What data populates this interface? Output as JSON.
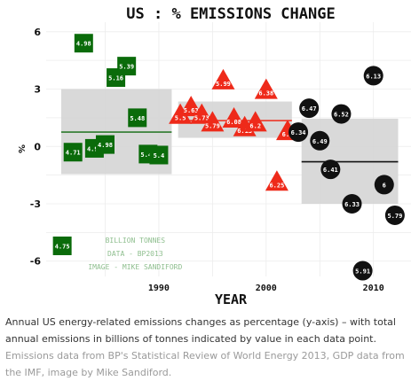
{
  "chart_data": {
    "type": "scatter",
    "title": "US : % EMISSIONS CHANGE",
    "xlabel": "YEAR",
    "ylabel": "%",
    "xlim": [
      1979.5,
      2013.5
    ],
    "ylim": [
      -6.8,
      6.5
    ],
    "x_ticks": [
      {
        "value": 1990,
        "label": "1990"
      },
      {
        "value": 2000,
        "label": "2000"
      },
      {
        "value": 2010,
        "label": "2010"
      }
    ],
    "y_ticks": [
      {
        "value": 6,
        "label": "6"
      },
      {
        "value": 3,
        "label": "3"
      },
      {
        "value": 0,
        "label": "0"
      },
      {
        "value": -3,
        "label": "-3"
      },
      {
        "value": -6,
        "label": "-6"
      }
    ],
    "grid": true,
    "series": [
      {
        "marker": "square",
        "color": "#0a6b0a",
        "points": [
          {
            "x": 1981,
            "y": -5.2,
            "label": "4.75"
          },
          {
            "x": 1982,
            "y": -0.3,
            "label": "4.71"
          },
          {
            "x": 1983,
            "y": 5.4,
            "label": "4.98"
          },
          {
            "x": 1984,
            "y": -0.1,
            "label": "4.97"
          },
          {
            "x": 1985,
            "y": 0.1,
            "label": "4.98"
          },
          {
            "x": 1986,
            "y": 3.6,
            "label": "5.16"
          },
          {
            "x": 1987,
            "y": 4.2,
            "label": "5.39"
          },
          {
            "x": 1988,
            "y": 1.5,
            "label": "5.48"
          },
          {
            "x": 1989,
            "y": -0.4,
            "label": "5.44"
          },
          {
            "x": 1990,
            "y": -0.45,
            "label": "5.4"
          }
        ]
      },
      {
        "marker": "triangle",
        "color": "#ee2a1a",
        "points": [
          {
            "x": 1992,
            "y": 1.6,
            "label": "5.5"
          },
          {
            "x": 1993,
            "y": 2.0,
            "label": "5.63"
          },
          {
            "x": 1994,
            "y": 1.6,
            "label": "5.73"
          },
          {
            "x": 1995,
            "y": 1.2,
            "label": "5.79"
          },
          {
            "x": 1996,
            "y": 3.4,
            "label": "5.99"
          },
          {
            "x": 1997,
            "y": 1.4,
            "label": "6.08"
          },
          {
            "x": 1998,
            "y": 0.95,
            "label": "6.13"
          },
          {
            "x": 1999,
            "y": 1.2,
            "label": "6.2"
          },
          {
            "x": 2000,
            "y": 2.9,
            "label": "6.38"
          },
          {
            "x": 2001,
            "y": -1.9,
            "label": "6.25"
          },
          {
            "x": 2002,
            "y": 0.75,
            "label": "6.3"
          }
        ]
      },
      {
        "marker": "circle",
        "color": "#111111",
        "points": [
          {
            "x": 2003,
            "y": 0.75,
            "label": "6.34"
          },
          {
            "x": 2004,
            "y": 2.0,
            "label": "6.47"
          },
          {
            "x": 2005,
            "y": 0.3,
            "label": "6.49"
          },
          {
            "x": 2006,
            "y": -1.2,
            "label": "6.41"
          },
          {
            "x": 2007,
            "y": 1.7,
            "label": "6.52"
          },
          {
            "x": 2008,
            "y": -3.0,
            "label": "6.33"
          },
          {
            "x": 2009,
            "y": -6.5,
            "label": "5.91"
          },
          {
            "x": 2010,
            "y": 3.7,
            "label": "6.13"
          },
          {
            "x": 2011,
            "y": -2.0,
            "label": "6"
          },
          {
            "x": 2012,
            "y": -3.6,
            "label": "5.79"
          }
        ]
      }
    ],
    "bands": [
      {
        "x": [
          1980.9,
          1991.2
        ],
        "y": [
          -1.45,
          3.0
        ],
        "mean": 0.75,
        "mean_color": "#2d7a2d"
      },
      {
        "x": [
          1991.8,
          2002.4
        ],
        "y": [
          0.45,
          2.35
        ],
        "mean": 1.35,
        "mean_color": "#ee2a1a"
      },
      {
        "x": [
          2003.3,
          2012.3
        ],
        "y": [
          -3.0,
          1.45
        ],
        "mean": -0.8,
        "mean_color": "#111111"
      }
    ],
    "annotation": {
      "lines": [
        "BILLION TONNES",
        "DATA - BP2013",
        "IMAGE - MIKE SANDIFORD"
      ],
      "color": "#8fbf8f"
    }
  },
  "caption": {
    "text": "Annual US energy-related emissions changes as percentage (y-axis) – with total annual emissions in billions of tonnes indicated by value in each data point.",
    "credit": "Emissions data from BP's Statistical Review of World Energy 2013, GDP data from the IMF, image by Mike Sandiford."
  }
}
